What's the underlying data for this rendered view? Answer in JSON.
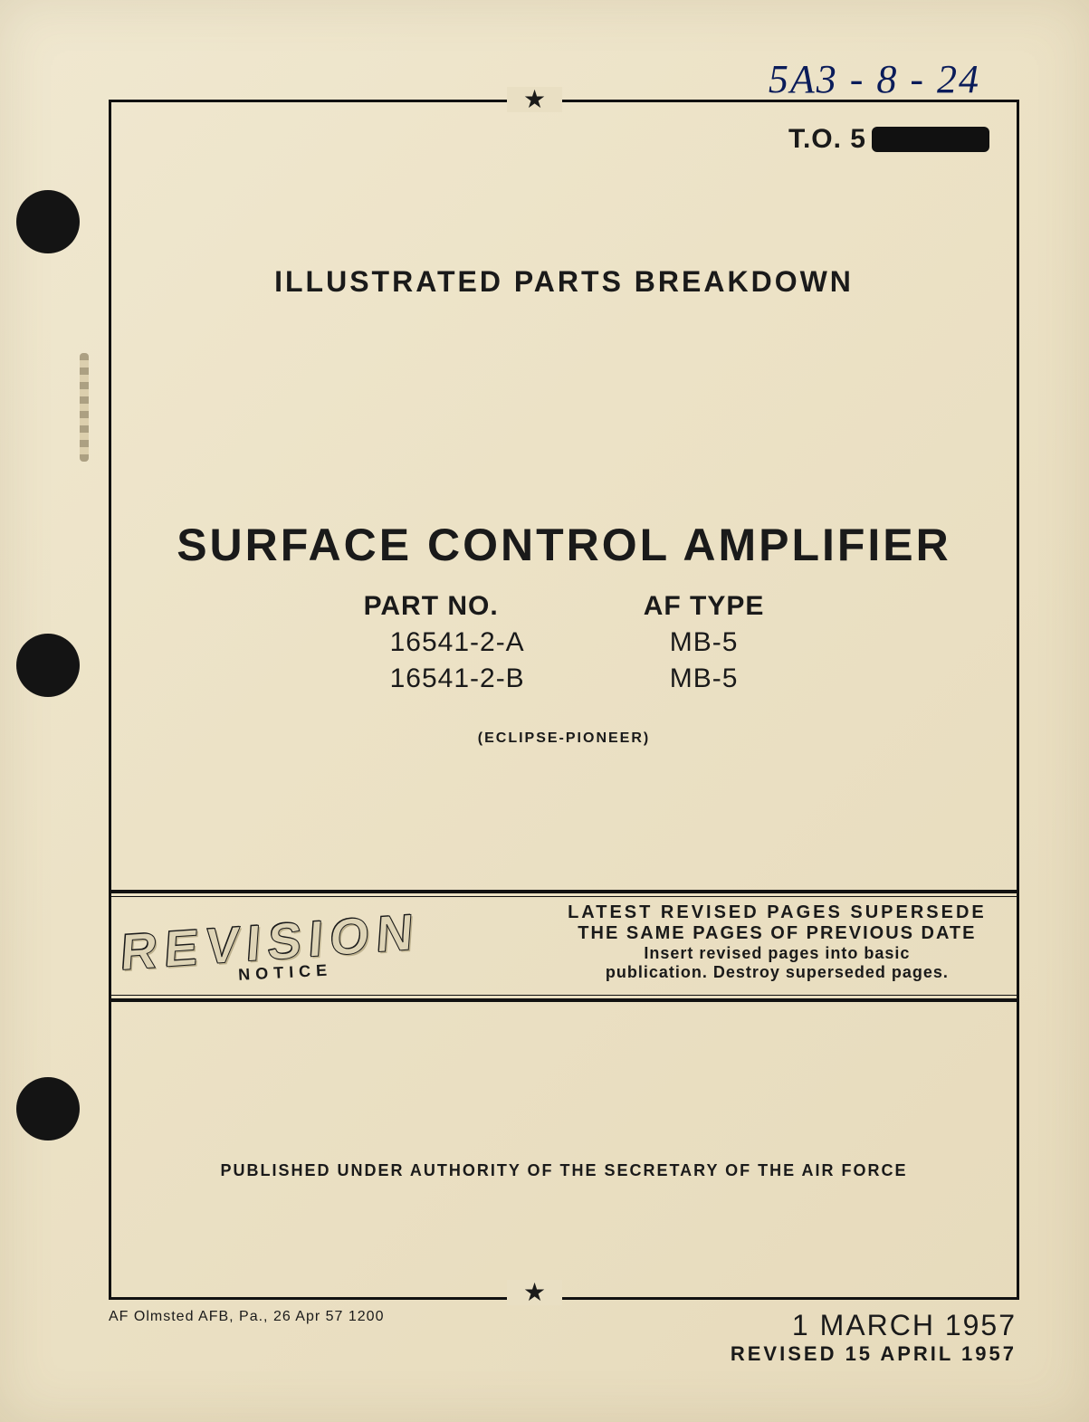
{
  "handwritten_note": "5A3 - 8 - 24",
  "to_prefix": "T.O. 5",
  "heading": "ILLUSTRATED PARTS BREAKDOWN",
  "title": "SURFACE CONTROL AMPLIFIER",
  "table": {
    "col1_header": "PART NO.",
    "col2_header": "AF TYPE",
    "rows": [
      {
        "part_no": "16541-2-A",
        "af_type": "MB-5"
      },
      {
        "part_no": "16541-2-B",
        "af_type": "MB-5"
      }
    ]
  },
  "manufacturer": "(ECLIPSE-PIONEER)",
  "revision": {
    "word": "REVISION",
    "subword": "NOTICE",
    "line1": "LATEST REVISED PAGES SUPERSEDE",
    "line2": "THE SAME PAGES OF PREVIOUS DATE",
    "line3": "Insert revised pages into basic",
    "line4": "publication. Destroy superseded pages."
  },
  "authority": "PUBLISHED UNDER AUTHORITY OF THE SECRETARY OF THE AIR FORCE",
  "footer_left": "AF Olmsted AFB, Pa., 26 Apr 57 1200",
  "footer_date": "1 MARCH 1957",
  "footer_revised": "REVISED 15 APRIL 1957",
  "star_glyph": "★"
}
